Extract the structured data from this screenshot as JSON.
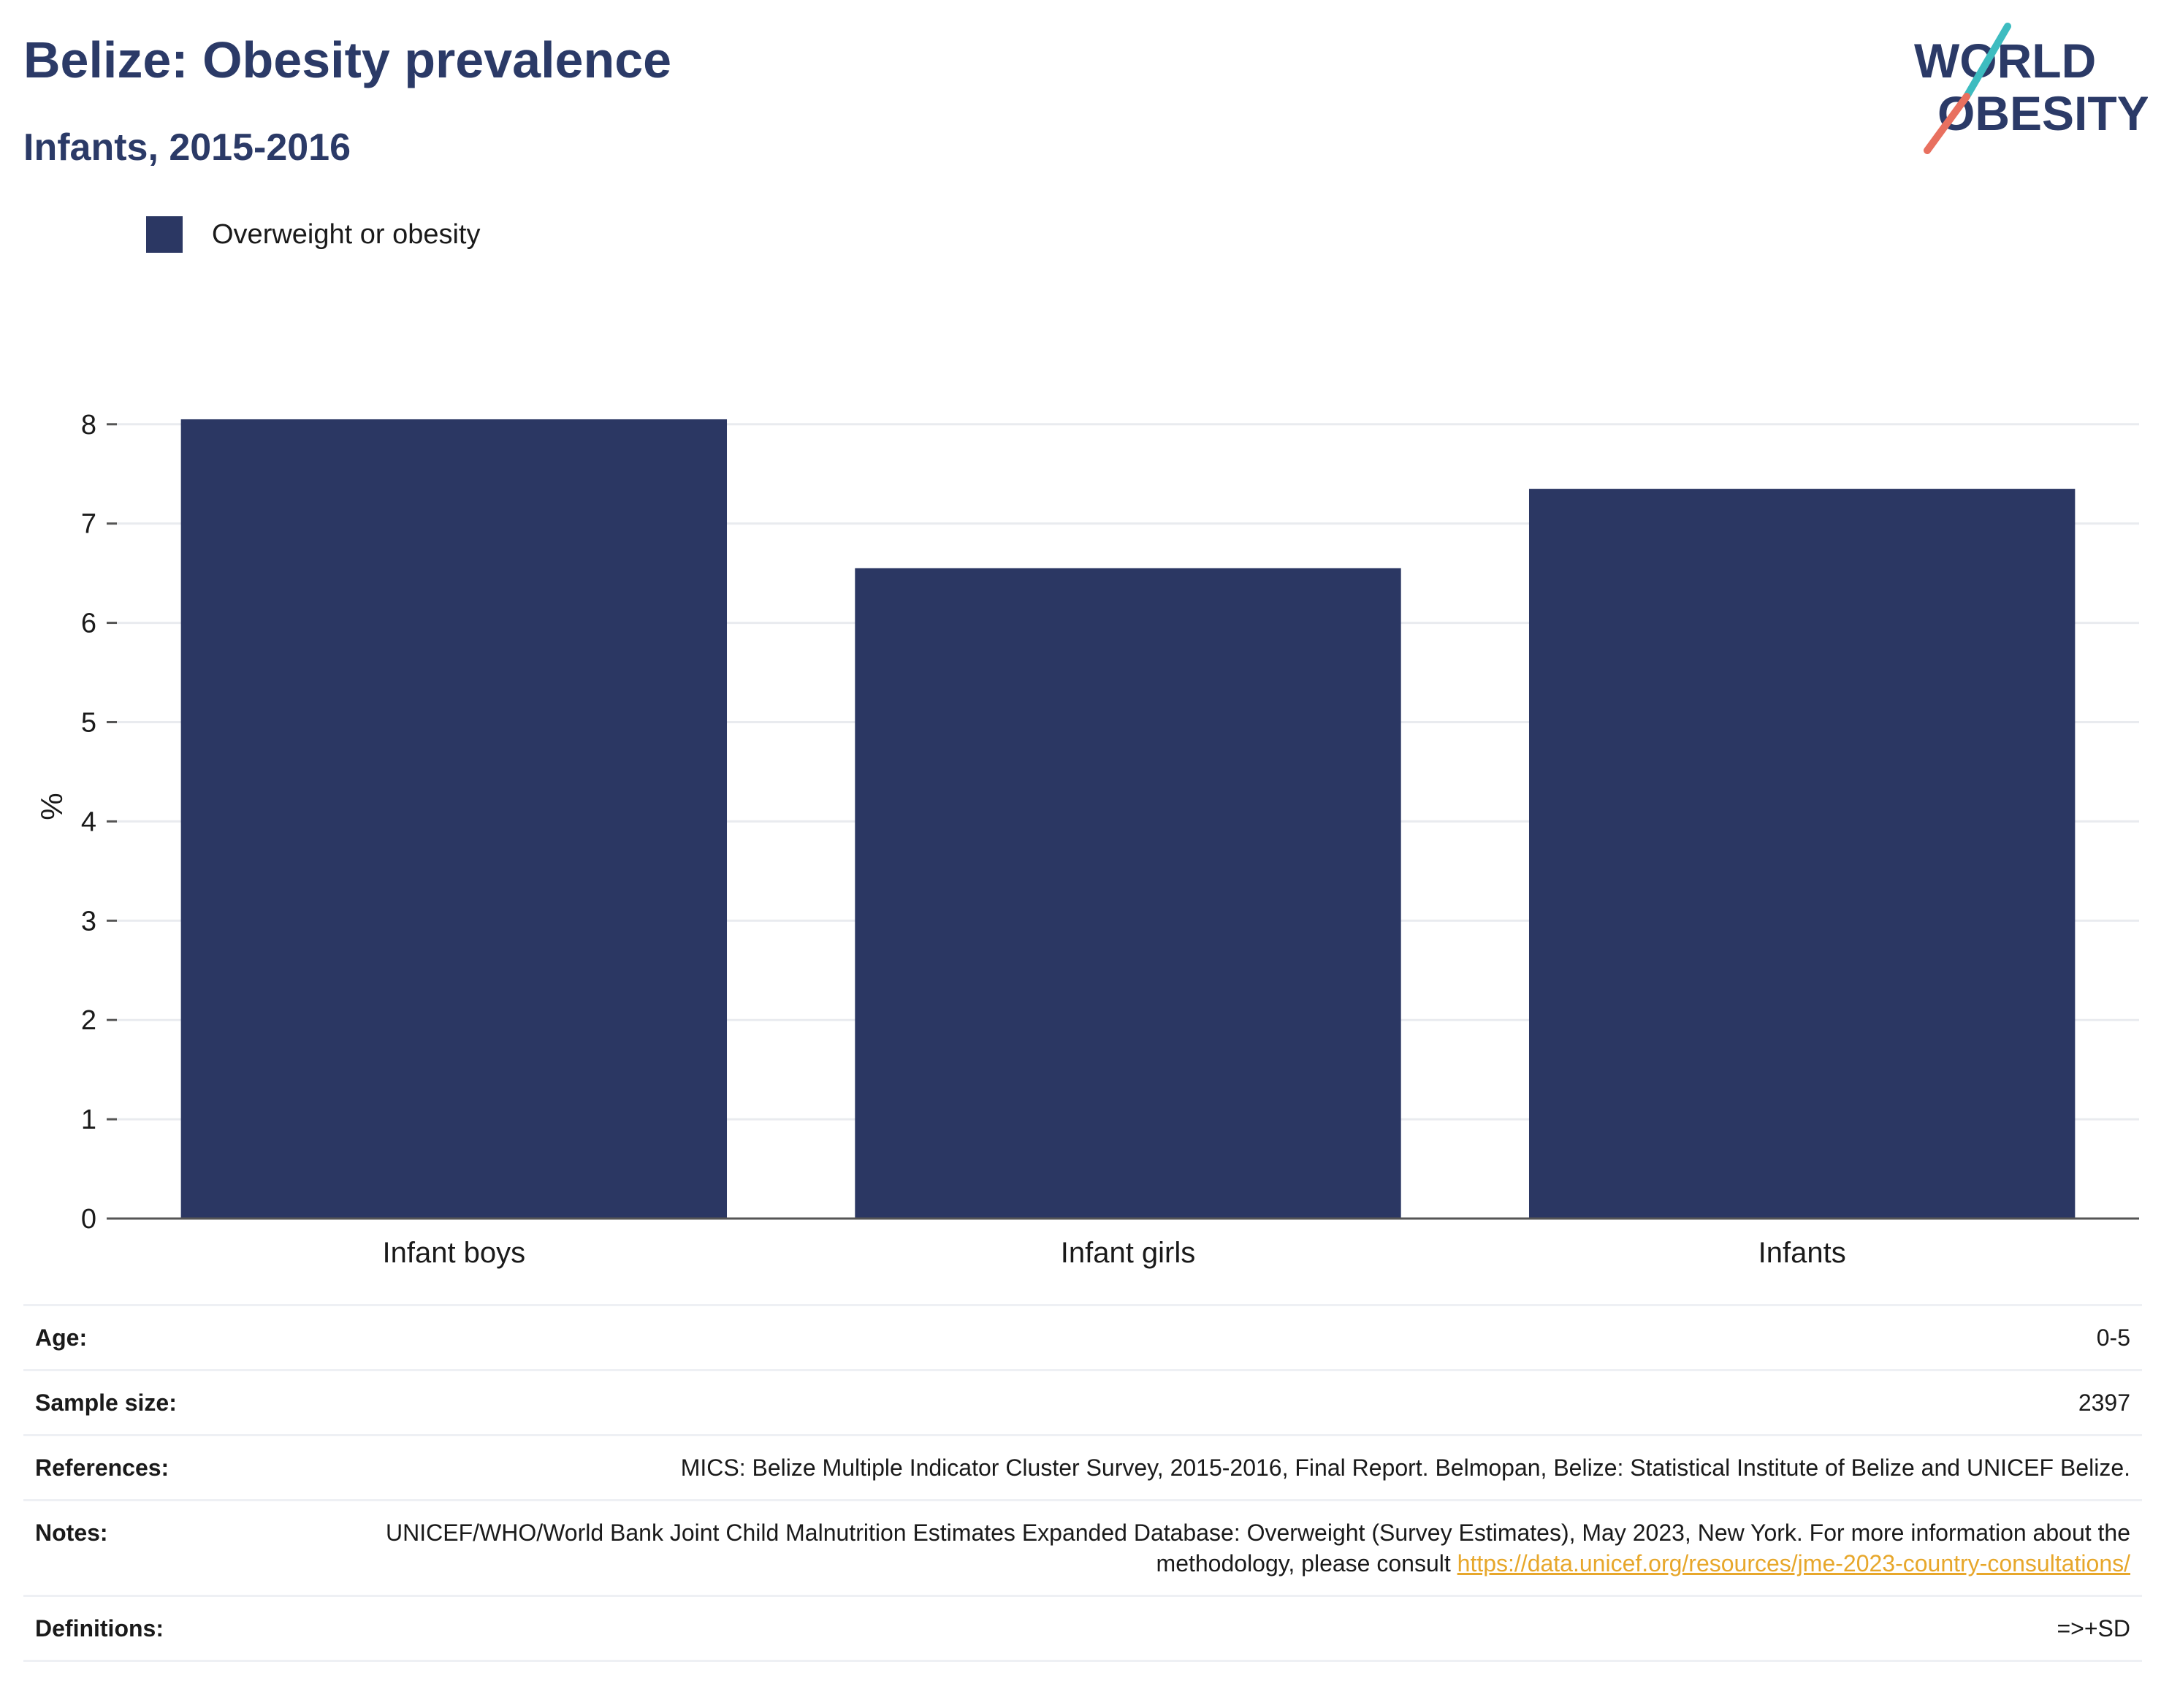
{
  "header": {
    "title": "Belize: Obesity prevalence",
    "subtitle": "Infants, 2015-2016"
  },
  "logo": {
    "line1": "WORLD",
    "line2": "OBESITY",
    "accent_teal": "#3dbcc0",
    "accent_coral": "#e8705f",
    "text_color": "#2b3a67"
  },
  "legend": {
    "label": "Overweight or obesity",
    "color": "#2b3763"
  },
  "chart_data": {
    "type": "bar",
    "categories": [
      "Infant boys",
      "Infant girls",
      "Infants"
    ],
    "series": [
      {
        "name": "Overweight or obesity",
        "values": [
          8.05,
          6.55,
          7.35
        ],
        "color": "#2b3763"
      }
    ],
    "xlabel": "",
    "ylabel": "%",
    "ylim": [
      0,
      8.3
    ],
    "yticks": [
      0,
      1,
      2,
      3,
      4,
      5,
      6,
      7,
      8
    ],
    "grid": true,
    "legend_position": "top-left"
  },
  "info": {
    "age_label": "Age:",
    "age_value": "0-5",
    "sample_label": "Sample size:",
    "sample_value": "2397",
    "references_label": "References:",
    "references_value": "MICS: Belize Multiple Indicator Cluster Survey, 2015-2016, Final Report. Belmopan, Belize: Statistical Institute of Belize and UNICEF Belize.",
    "notes_label": "Notes:",
    "notes_value": "UNICEF/WHO/World Bank Joint Child Malnutrition Estimates Expanded Database: Overweight (Survey Estimates), May 2023, New York. For more information about the methodology, please consult",
    "notes_link": "https://data.unicef.org/resources/jme-2023-country-consultations/",
    "definitions_label": "Definitions:",
    "definitions_value": "=>+SD"
  }
}
